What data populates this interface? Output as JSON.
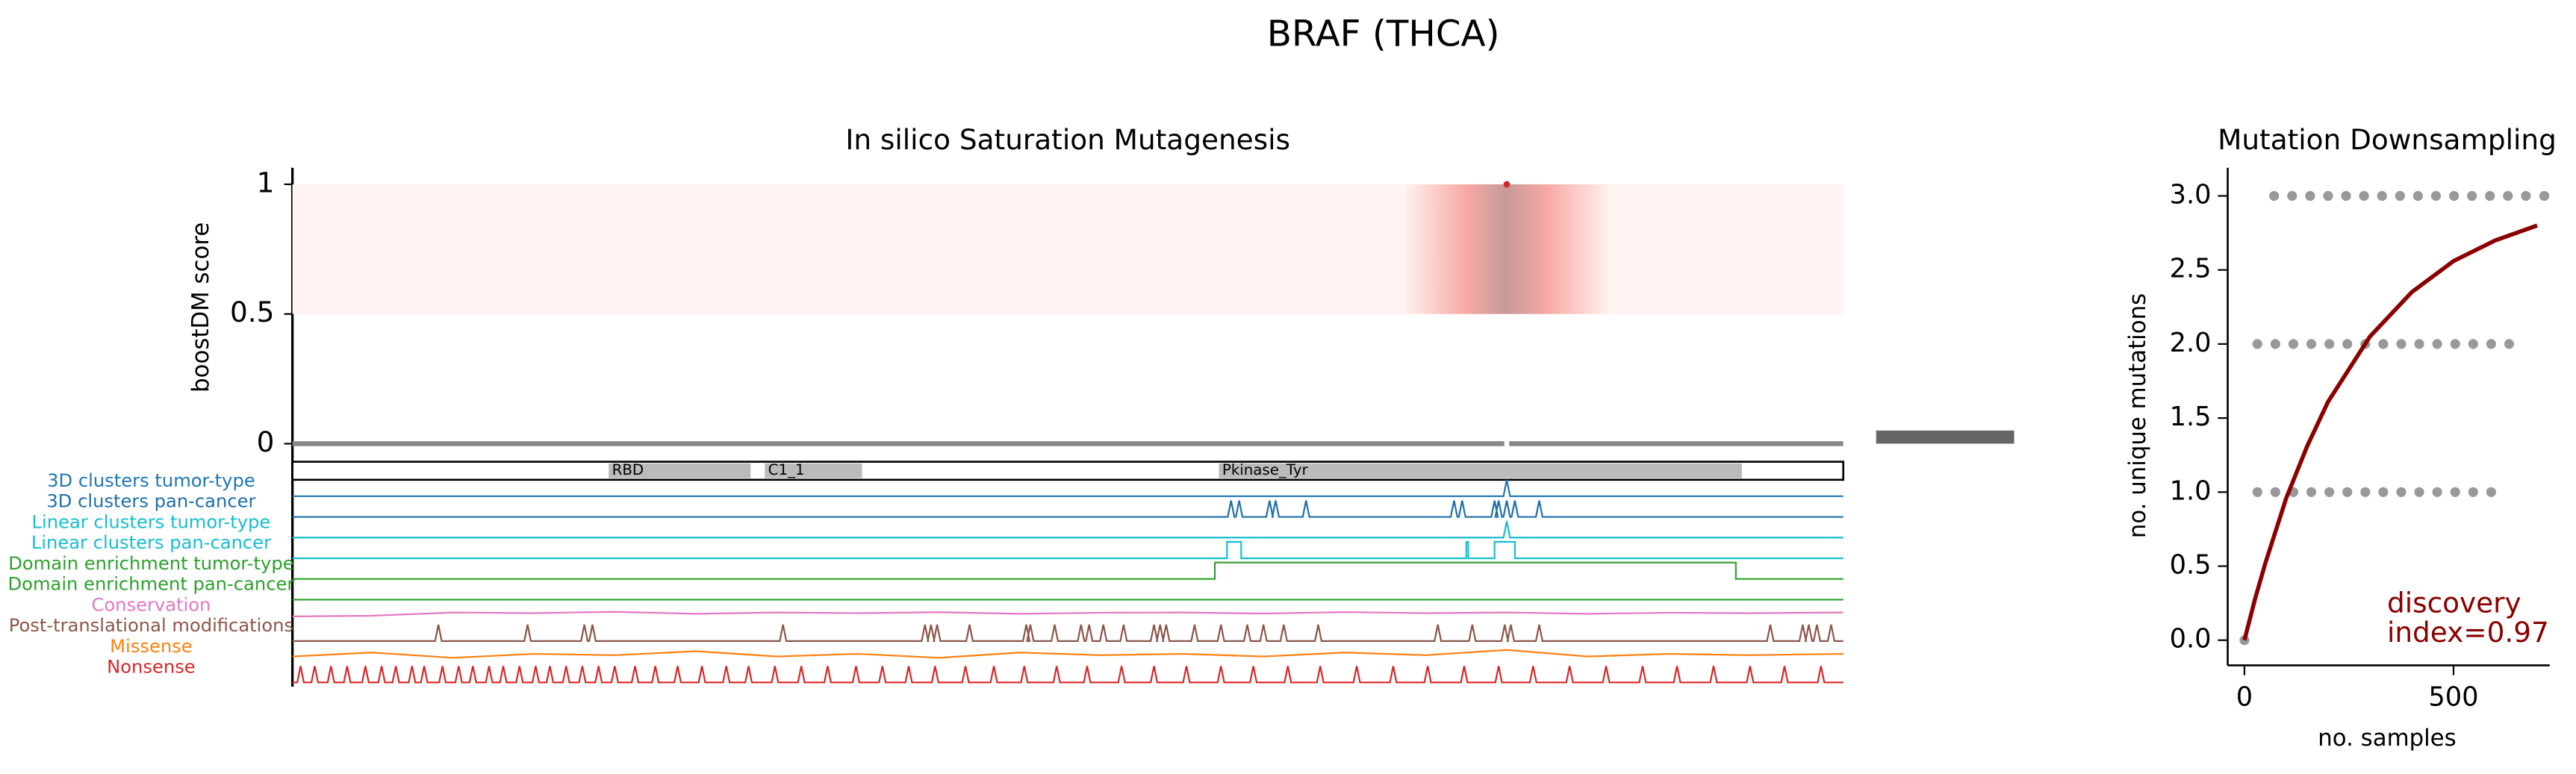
{
  "title": "BRAF (THCA)",
  "chart_data": [
    {
      "type": "mutagenesis",
      "title": "In silico Saturation Mutagenesis",
      "ylabel": "boostDM score",
      "xlim": [
        1,
        766
      ],
      "ylim": [
        -0.01,
        1.06
      ],
      "yticks": [
        0,
        0.5,
        1
      ],
      "points": {
        "x": [
          600
        ],
        "y": [
          1
        ],
        "color": "#d62728"
      },
      "domains": [
        {
          "name": "RBD",
          "start": 157,
          "end": 227
        },
        {
          "name": "C1_1",
          "start": 234,
          "end": 282
        },
        {
          "name": "Pkinase_Tyr",
          "start": 458,
          "end": 716
        }
      ],
      "tracks": [
        {
          "name": "3D clusters tumor-type",
          "color": "#1f77b4",
          "peaks": [
            600
          ]
        },
        {
          "name": "3D clusters pan-cancer",
          "color": "#1f6fa8",
          "peaks": [
            464,
            468,
            483,
            486,
            501,
            574,
            578,
            594,
            596,
            600,
            604,
            616
          ]
        },
        {
          "name": "Linear clusters tumor-type",
          "color": "#17becf",
          "peaks": [
            600
          ]
        },
        {
          "name": "Linear clusters pan-cancer",
          "color": "#17becf",
          "ranges": [
            [
              462,
              469
            ],
            [
              580,
              581
            ],
            [
              594,
              604
            ]
          ]
        },
        {
          "name": "Domain enrichment tumor-type",
          "color": "#2ca02c",
          "ranges": [
            [
              456,
              713
            ]
          ]
        },
        {
          "name": "Domain enrichment pan-cancer",
          "color": "#2ca02c",
          "peaks": []
        },
        {
          "name": "Conservation",
          "color": "#e377c2",
          "x": [
            1,
            40,
            80,
            120,
            160,
            200,
            240,
            280,
            320,
            360,
            400,
            440,
            480,
            520,
            560,
            600,
            640,
            680,
            720,
            766
          ],
          "values": [
            0.3,
            0.35,
            0.6,
            0.55,
            0.65,
            0.5,
            0.6,
            0.55,
            0.62,
            0.5,
            0.58,
            0.6,
            0.52,
            0.63,
            0.55,
            0.6,
            0.5,
            0.58,
            0.55,
            0.6
          ]
        },
        {
          "name": "Post-translational modifications",
          "color": "#8c564b",
          "peaks": [
            73,
            117,
            145,
            149,
            243,
            313,
            316,
            319,
            335,
            363,
            365,
            377,
            390,
            394,
            401,
            411,
            426,
            429,
            432,
            446,
            459,
            472,
            480,
            490,
            507,
            566,
            583,
            599,
            602,
            616,
            730,
            746,
            749,
            753,
            760
          ]
        },
        {
          "name": "Missense",
          "color": "#ff7f0e",
          "x": [
            1,
            40,
            80,
            120,
            160,
            200,
            240,
            280,
            320,
            360,
            400,
            440,
            480,
            520,
            560,
            600,
            640,
            680,
            720,
            766
          ],
          "values": [
            0.4,
            0.7,
            0.3,
            0.6,
            0.5,
            0.8,
            0.4,
            0.6,
            0.3,
            0.7,
            0.5,
            0.6,
            0.4,
            0.7,
            0.5,
            0.9,
            0.4,
            0.6,
            0.5,
            0.6
          ]
        },
        {
          "name": "Nonsense",
          "color": "#d62728",
          "peaks": [
            5,
            12,
            20,
            28,
            37,
            45,
            52,
            60,
            66,
            75,
            83,
            90,
            98,
            105,
            113,
            121,
            128,
            136,
            144,
            152,
            160,
            170,
            180,
            191,
            203,
            215,
            226,
            239,
            252,
            265,
            279,
            292,
            305,
            318,
            333,
            347,
            362,
            378,
            393,
            410,
            426,
            442,
            459,
            475,
            492,
            508,
            526,
            544,
            561,
            579,
            596,
            613,
            631,
            649,
            667,
            684,
            702,
            720,
            737,
            755
          ]
        }
      ]
    },
    {
      "type": "scatter",
      "title": "Mutation Downsampling",
      "xlabel": "no. samples",
      "ylabel": "no. unique mutations",
      "xlim": [
        -40,
        730
      ],
      "xticks": [
        0,
        500
      ],
      "ylim": [
        -0.17,
        3.19
      ],
      "yticks": [
        {
          "value": 0,
          "label": "0.0"
        },
        {
          "value": 0.5,
          "label": "0.5"
        },
        {
          "value": 1,
          "label": "1.0"
        },
        {
          "value": 1.5,
          "label": "1.5"
        },
        {
          "value": 2,
          "label": "2.0"
        },
        {
          "value": 2.5,
          "label": "2.5"
        },
        {
          "value": 3,
          "label": "3.0"
        }
      ],
      "points": {
        "color": "#808080",
        "x": [
          0,
          31,
          74,
          117,
          160,
          203,
          246,
          289,
          332,
          375,
          418,
          461,
          504,
          547,
          590,
          31,
          74,
          117,
          160,
          203,
          246,
          289,
          332,
          375,
          418,
          461,
          504,
          547,
          590,
          633,
          71,
          114,
          157,
          200,
          243,
          286,
          329,
          372,
          415,
          458,
          501,
          544,
          587,
          630,
          673,
          717
        ],
        "y": [
          0,
          1,
          1,
          1,
          1,
          1,
          1,
          1,
          1,
          1,
          1,
          1,
          1,
          1,
          1,
          2,
          2,
          2,
          2,
          2,
          2,
          2,
          2,
          2,
          2,
          2,
          2,
          2,
          2,
          2,
          3,
          3,
          3,
          3,
          3,
          3,
          3,
          3,
          3,
          3,
          3,
          3,
          3,
          3,
          3,
          3
        ]
      },
      "curve": {
        "color": "#8b0000",
        "x": [
          0,
          25,
          50,
          100,
          150,
          200,
          300,
          400,
          500,
          600,
          700
        ],
        "y": [
          0,
          0.275,
          0.52,
          0.96,
          1.31,
          1.61,
          2.05,
          2.35,
          2.56,
          2.7,
          2.8
        ]
      },
      "annotation": [
        "discovery",
        "index=0.97"
      ]
    }
  ]
}
